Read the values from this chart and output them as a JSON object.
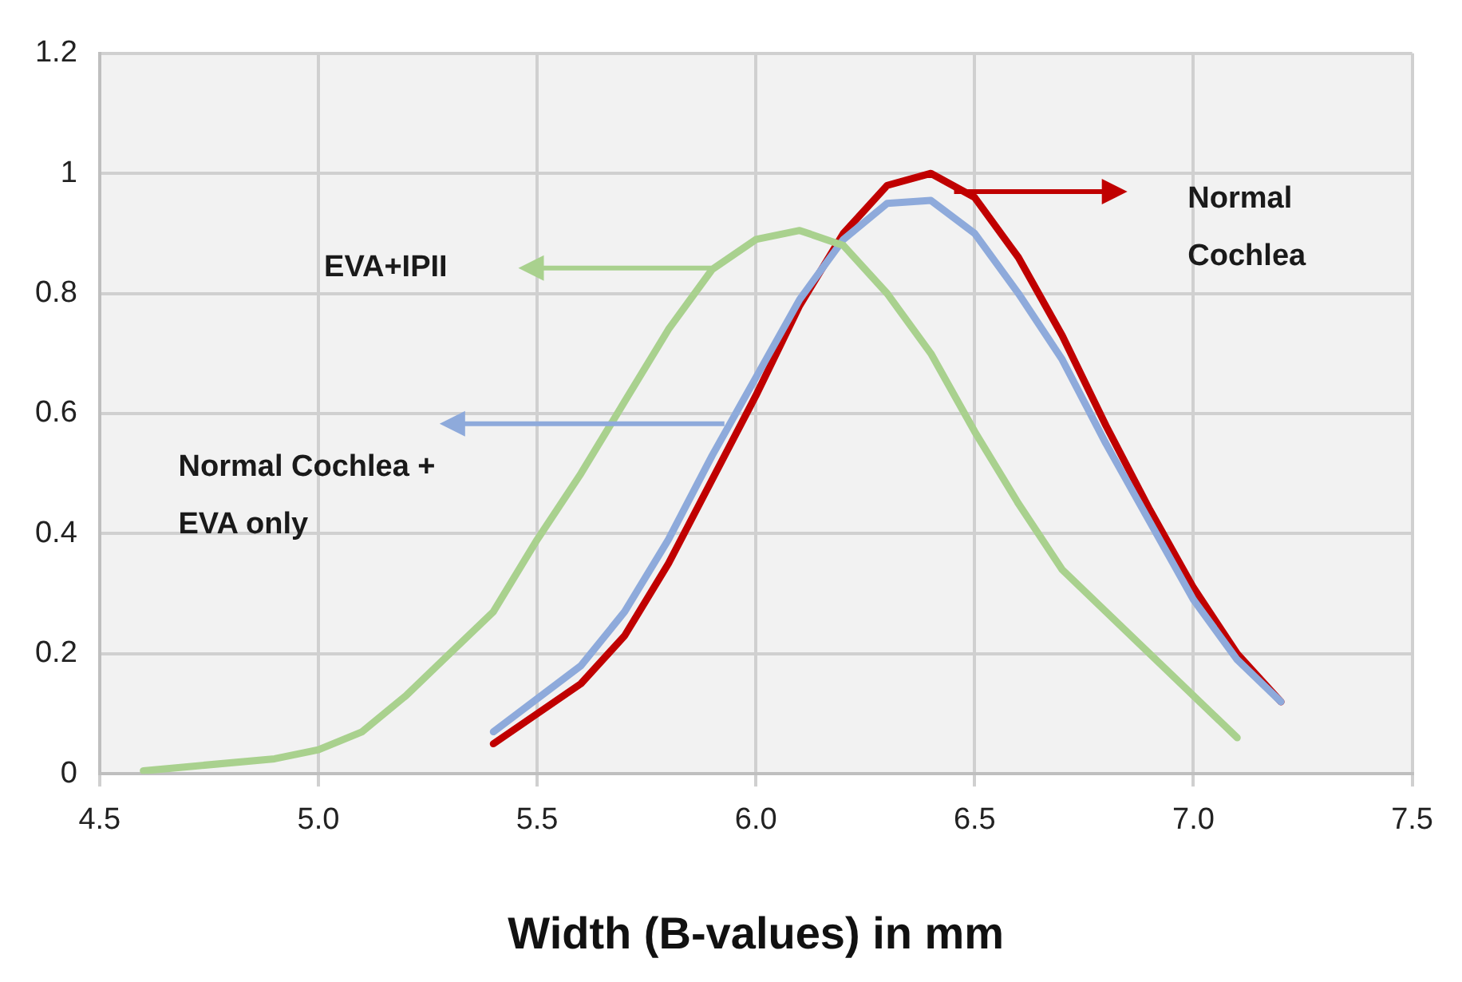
{
  "chart_data": {
    "type": "line",
    "xlabel": "Width (B-values) in mm",
    "xlim": [
      4.5,
      7.5
    ],
    "xticks": [
      {
        "value": 4.5,
        "label": "4.5"
      },
      {
        "value": 5,
        "label": "5.0"
      },
      {
        "value": 5.5,
        "label": "5.5"
      },
      {
        "value": 6,
        "label": "6.0"
      },
      {
        "value": 6.5,
        "label": "6.5"
      },
      {
        "value": 7,
        "label": "7.0"
      },
      {
        "value": 7.5,
        "label": "7.5"
      }
    ],
    "ylim": [
      0,
      1.2
    ],
    "yticks": [
      0,
      0.2,
      0.4,
      0.6,
      0.8,
      1,
      1.2
    ],
    "grid": true,
    "legend": false,
    "marker": "none",
    "line_style": "solid",
    "series": [
      {
        "color": "#a9d18e",
        "x": [
          4.6,
          4.9,
          5.0,
          5.1,
          5.2,
          5.3,
          5.4,
          5.5,
          5.6,
          5.7,
          5.8,
          5.9,
          6.0,
          6.1,
          6.2,
          6.3,
          6.4,
          6.5,
          6.6,
          6.7,
          7.1
        ],
        "values": [
          0.005,
          0.025,
          0.04,
          0.07,
          0.13,
          0.2,
          0.27,
          0.39,
          0.5,
          0.62,
          0.74,
          0.84,
          0.89,
          0.905,
          0.88,
          0.8,
          0.7,
          0.57,
          0.45,
          0.34,
          0.06
        ]
      },
      {
        "color": "#8eaadb",
        "x": [
          5.4,
          5.6,
          5.7,
          5.8,
          5.9,
          6.0,
          6.1,
          6.2,
          6.3,
          6.4,
          6.5,
          6.6,
          6.7,
          6.8,
          6.9,
          7.0,
          7.1,
          7.2
        ],
        "values": [
          0.07,
          0.18,
          0.27,
          0.39,
          0.53,
          0.66,
          0.79,
          0.89,
          0.95,
          0.955,
          0.9,
          0.8,
          0.69,
          0.55,
          0.42,
          0.29,
          0.19,
          0.12
        ]
      },
      {
        "color": "#c00000",
        "x": [
          5.4,
          5.6,
          5.7,
          5.8,
          5.9,
          6.0,
          6.1,
          6.2,
          6.3,
          6.4,
          6.5,
          6.6,
          6.7,
          6.8,
          6.9,
          7.0,
          7.1,
          7.2
        ],
        "values": [
          0.05,
          0.15,
          0.23,
          0.35,
          0.49,
          0.63,
          0.78,
          0.9,
          0.98,
          1.0,
          0.96,
          0.86,
          0.73,
          0.58,
          0.44,
          0.31,
          0.2,
          0.12
        ]
      }
    ],
    "annotations": [
      "Normal Cochlea",
      "EVA+IPII",
      "Normal Cochlea + EVA only"
    ]
  }
}
